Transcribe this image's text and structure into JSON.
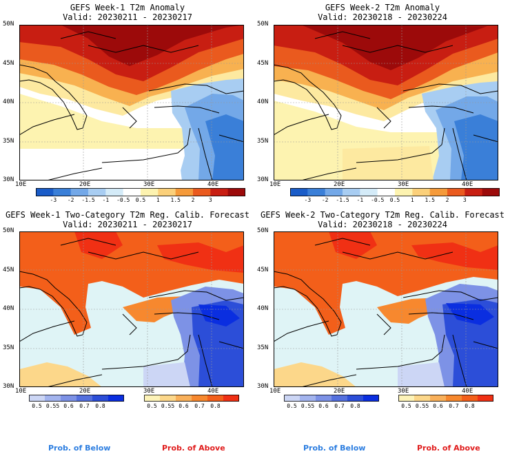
{
  "panels": [
    {
      "title": "GEFS Week-1 T2m Anomaly",
      "valid": "Valid: 20230211 - 20230217"
    },
    {
      "title": "GEFS Week-2 T2m Anomaly",
      "valid": "Valid: 20230218 - 20230224"
    },
    {
      "title": "GEFS Week-1 Two-Category T2m Reg. Calib. Forecast",
      "valid": "Valid: 20230211 - 20230217"
    },
    {
      "title": "GEFS Week-2 Two-Category T2m Reg. Calib. Forecast",
      "valid": "Valid: 20230218 - 20230224"
    }
  ],
  "lat_labels": [
    "50N",
    "45N",
    "40N",
    "35N",
    "30N"
  ],
  "lon_labels": [
    "10E",
    "20E",
    "30E",
    "40E"
  ],
  "anomaly_scale": {
    "ticks": [
      "-3",
      "-2",
      "-1.5",
      "-1",
      "-0.5",
      "0.5",
      "1",
      "1.5",
      "2",
      "3"
    ],
    "colors": [
      "#1a5cc8",
      "#3a7fd8",
      "#73a8e8",
      "#a8cdf2",
      "#d4ebf8",
      "#ffffff",
      "#fdf3b0",
      "#fbd07a",
      "#f59a3a",
      "#ea5a1e",
      "#c81e12",
      "#9c0a0a"
    ]
  },
  "below_scale": {
    "ticks": [
      "0.5",
      "0.55",
      "0.6",
      "0.7",
      "0.8"
    ],
    "colors": [
      "#ccd6f5",
      "#a3b4ee",
      "#7d92e6",
      "#5470de",
      "#2c4ed8",
      "#0a2ee0"
    ]
  },
  "above_scale": {
    "ticks": [
      "0.5",
      "0.55",
      "0.6",
      "0.7",
      "0.8"
    ],
    "colors": [
      "#fdf3b8",
      "#fcd78a",
      "#f9b05a",
      "#f7882e",
      "#f35f1a",
      "#f03014"
    ]
  },
  "prob_labels": {
    "below": "Prob. of Below",
    "above": "Prob. of Above",
    "below_color": "#2b7de0",
    "above_color": "#e01b1b"
  }
}
